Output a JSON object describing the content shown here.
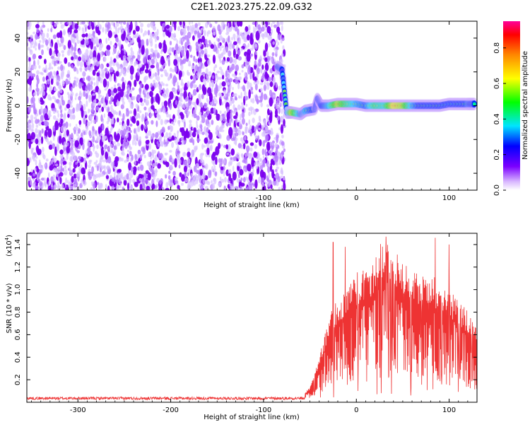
{
  "page_title": "C2E1.2023.275.22.09.G32",
  "chart_data": [
    {
      "type": "heatmap",
      "title": "C2E1.2023.275.22.09.G32",
      "xlabel": "Height of straight line (km)",
      "ylabel": "Frequency (Hz)",
      "xlim": [
        -355,
        130
      ],
      "ylim": [
        -50,
        50
      ],
      "x_ticks": [
        -300,
        -200,
        -100,
        0,
        100
      ],
      "y_ticks": [
        -40,
        -20,
        0,
        20,
        40
      ],
      "noise_region_x": [
        -355,
        -77
      ],
      "signal_trace": [
        {
          "x": -85,
          "y": 23,
          "v": 0.35
        },
        {
          "x": -80,
          "y": 21,
          "v": 0.35
        },
        {
          "x": -75,
          "y": -4,
          "v": 0.55
        },
        {
          "x": -70,
          "y": -4,
          "v": 0.85
        },
        {
          "x": -60,
          "y": -5,
          "v": 0.55
        },
        {
          "x": -55,
          "y": -3,
          "v": 0.6
        },
        {
          "x": -45,
          "y": -2,
          "v": 0.5
        },
        {
          "x": -42,
          "y": 4,
          "v": 0.45
        },
        {
          "x": -38,
          "y": 0,
          "v": 0.5
        },
        {
          "x": -30,
          "y": 0,
          "v": 0.6
        },
        {
          "x": -20,
          "y": 1,
          "v": 0.85
        },
        {
          "x": -10,
          "y": 1,
          "v": 0.7
        },
        {
          "x": 0,
          "y": 1,
          "v": 0.6
        },
        {
          "x": 10,
          "y": 0,
          "v": 0.55
        },
        {
          "x": 20,
          "y": 0,
          "v": 0.7
        },
        {
          "x": 30,
          "y": 0,
          "v": 0.65
        },
        {
          "x": 40,
          "y": 0,
          "v": 0.9
        },
        {
          "x": 50,
          "y": 0,
          "v": 0.85
        },
        {
          "x": 60,
          "y": 0,
          "v": 0.6
        },
        {
          "x": 70,
          "y": 0,
          "v": 0.5
        },
        {
          "x": 80,
          "y": 0,
          "v": 0.5
        },
        {
          "x": 90,
          "y": 0,
          "v": 0.5
        },
        {
          "x": 100,
          "y": 1,
          "v": 0.45
        },
        {
          "x": 110,
          "y": 1,
          "v": 0.5
        },
        {
          "x": 120,
          "y": 1,
          "v": 0.55
        },
        {
          "x": 128,
          "y": 1,
          "v": 0.5
        }
      ],
      "colorbar": {
        "label": "Normalized spectral amplitude",
        "range": [
          0,
          0.95
        ],
        "ticks": [
          "0.0",
          "0.2",
          "0.4",
          "0.6",
          "0.8"
        ],
        "tick_values": [
          0,
          0.2,
          0.4,
          0.6,
          0.8
        ]
      },
      "grid": false
    },
    {
      "type": "line",
      "xlabel": "Height of straight line (km)",
      "ylabel": "SNR (10 * v/v)",
      "scale_label": "(x10",
      "scale_exponent": "4",
      "scale_close": ")",
      "xlim": [
        -355,
        130
      ],
      "ylim": [
        0,
        1.5
      ],
      "x_ticks": [
        -300,
        -200,
        -100,
        0,
        100
      ],
      "y_ticks": [
        "0.2",
        "0.4",
        "0.6",
        "0.8",
        "1.0",
        "1.2",
        "1.4"
      ],
      "y_tick_values": [
        0.2,
        0.4,
        0.6,
        0.8,
        1.0,
        1.2,
        1.4
      ],
      "series": [
        {
          "color": "#ee3333",
          "envelope": [
            {
              "x": -355,
              "y": 0.04
            },
            {
              "x": -60,
              "y": 0.04
            },
            {
              "x": -50,
              "y": 0.1
            },
            {
              "x": -40,
              "y": 0.3
            },
            {
              "x": -30,
              "y": 0.55
            },
            {
              "x": -20,
              "y": 0.7
            },
            {
              "x": -10,
              "y": 0.75
            },
            {
              "x": 0,
              "y": 0.85
            },
            {
              "x": 10,
              "y": 0.9
            },
            {
              "x": 20,
              "y": 0.95
            },
            {
              "x": 30,
              "y": 1.1
            },
            {
              "x": 40,
              "y": 1.0
            },
            {
              "x": 50,
              "y": 0.95
            },
            {
              "x": 60,
              "y": 0.9
            },
            {
              "x": 70,
              "y": 0.85
            },
            {
              "x": 80,
              "y": 0.85
            },
            {
              "x": 90,
              "y": 0.8
            },
            {
              "x": 100,
              "y": 0.75
            },
            {
              "x": 110,
              "y": 0.7
            },
            {
              "x": 120,
              "y": 0.6
            },
            {
              "x": 130,
              "y": 0.55
            }
          ],
          "peaks": [
            {
              "x": -25,
              "y": 1.42
            },
            {
              "x": -12,
              "y": 1.38
            },
            {
              "x": 32,
              "y": 1.47
            },
            {
              "x": 85,
              "y": 1.46
            },
            {
              "x": 100,
              "y": 1.4
            }
          ]
        }
      ],
      "grid": false
    }
  ]
}
